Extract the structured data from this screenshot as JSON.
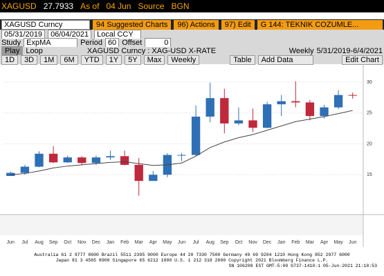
{
  "header": {
    "ticker": "XAGUSD",
    "price": "27.7933",
    "as_of_label": "As of",
    "as_of": "04 Jun",
    "source_label": "Source",
    "source": "BGN"
  },
  "toolbar": {
    "security": "XAGUSD Curncy",
    "suggested": "94 Suggested Charts",
    "actions": "96) Actions",
    "edit": "97) Edit",
    "template": "G 144: TEKNIK COZUMLE...",
    "start_date": "05/31/2019",
    "end_date": "06/04/2021",
    "currency": "Local CCY",
    "study_label": "Study",
    "study": "ExpMA",
    "period_label": "Period",
    "period": "60",
    "offset_label": "Offset",
    "offset": "0",
    "play": "Play",
    "loop": "Loop",
    "description": "XAGUSD Curncy : XAG-USD X-RATE",
    "frequency": "Weekly",
    "range": "5/31/2019-6/4/2021",
    "periods": [
      "1D",
      "3D",
      "1M",
      "6M",
      "YTD",
      "1Y",
      "5Y",
      "Max"
    ],
    "frequency_select": "Weekly",
    "table": "Table",
    "add_data": "Add Data",
    "edit_chart": "Edit Chart"
  },
  "chart_data": {
    "type": "candlestick",
    "categories": [
      "Jun",
      "Jul",
      "Aug",
      "Sep",
      "Oct",
      "Nov",
      "Dec",
      "Jan",
      "Feb",
      "Mar",
      "Apr",
      "May",
      "Jun",
      "Jul",
      "Aug",
      "Sep",
      "Oct",
      "Nov",
      "Dec",
      "Jan",
      "Feb",
      "Mar",
      "Apr",
      "May",
      "Jun"
    ],
    "open": [
      14.8,
      15.3,
      16.3,
      18.4,
      17.0,
      17.8,
      16.9,
      17.8,
      18.0,
      16.6,
      14.0,
      15.0,
      18.2,
      18.2,
      24.4,
      27.4,
      23.3,
      23.8,
      22.6,
      26.4,
      26.9,
      26.7,
      24.5,
      25.9,
      27.9
    ],
    "high": [
      15.5,
      16.6,
      18.8,
      19.6,
      18.1,
      18.0,
      18.1,
      18.9,
      18.9,
      17.7,
      15.6,
      18.5,
      18.5,
      26.2,
      29.9,
      28.9,
      25.9,
      25.7,
      26.8,
      27.9,
      30.1,
      27.1,
      26.3,
      28.7,
      28.3
    ],
    "low": [
      14.8,
      15.0,
      16.2,
      16.9,
      16.9,
      16.6,
      16.6,
      17.4,
      16.5,
      11.6,
      14.0,
      14.6,
      17.2,
      18.0,
      23.5,
      21.7,
      23.0,
      21.9,
      22.5,
      24.5,
      25.9,
      23.8,
      24.1,
      25.6,
      27.3
    ],
    "close": [
      15.3,
      16.3,
      18.4,
      17.0,
      17.8,
      16.9,
      17.8,
      18.0,
      16.6,
      14.0,
      15.0,
      18.2,
      18.2,
      24.4,
      27.4,
      23.3,
      23.8,
      22.6,
      26.4,
      26.9,
      26.7,
      24.5,
      25.9,
      27.9,
      27.79
    ],
    "up_color": "#2f6fb5",
    "down_color": "#c0283c",
    "ma_values": [
      15.0,
      15.2,
      15.6,
      16.1,
      16.4,
      16.6,
      16.8,
      17.0,
      17.1,
      16.8,
      16.5,
      16.6,
      16.9,
      18.0,
      19.4,
      20.3,
      21.0,
      21.5,
      22.2,
      22.9,
      23.6,
      24.0,
      24.4,
      24.9,
      25.4
    ],
    "ma_color": "#444444",
    "ylim": [
      10,
      32
    ],
    "yticks": [
      15,
      20,
      25,
      30
    ],
    "grid": true
  },
  "footer": {
    "line1": "Australia 61 2 9777 8600 Brazil 5511 2395 9000 Europe 44 20 7330 7500 Germany 49 69 9204 1210 Hong Kong 852 2977 6000",
    "line2": "Japan 81 3 4565 8900 Singapore 65 6212 1000 U.S. 1 212 318 2000 Copyright 2021 Bloomberg Finance L.P.",
    "line3": "SN 106208 EST GMT-5:00 G737-1410-1 05-Jun-2021 21:18:53"
  }
}
